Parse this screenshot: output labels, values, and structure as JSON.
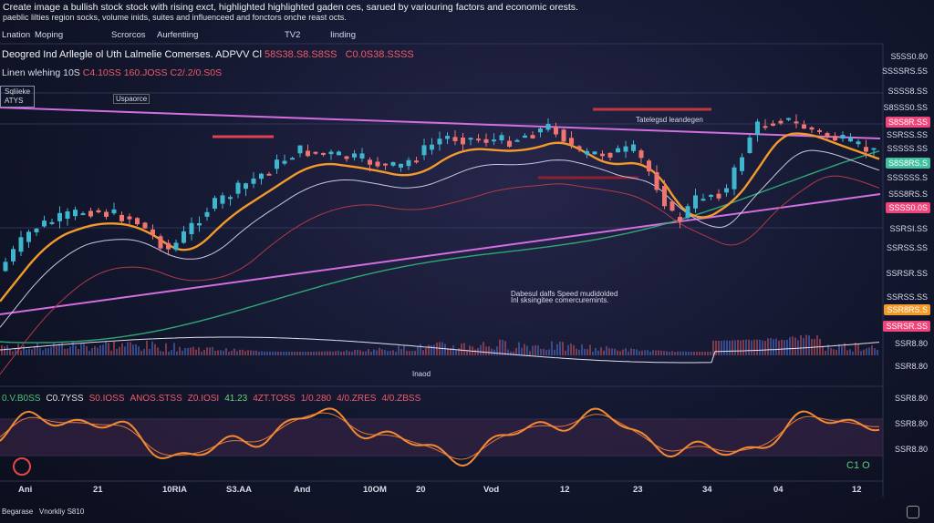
{
  "caption": {
    "line1": "Create image a bullish stock stock with rising exct, highlighted highlighted gaden ces, sarued by variouring factors and economic orests.",
    "line2": "paeblic lilties region socks, volume inids, suites and influenceed and fonctors onche reast octs."
  },
  "toolbar": [
    "Lnation",
    "Moping",
    "Scrorcos",
    "Aurfentiing",
    "TV2",
    "Iinding"
  ],
  "header": {
    "title": "Deogred Ind Arllegle ol Uth Lalmelie Comerses. ADPVV Cl",
    "value1": "58S38.S8.S8SS",
    "value2": "C0.0S38.SSSS",
    "sub": "Linen wlehing 10S",
    "sub1": "C4.10SS",
    "sub2": "160.JOSS",
    "sub3": "C2/.2/0.S0S"
  },
  "legend_box": {
    "line1": "Sqliieke",
    "line2": "ATYS"
  },
  "annotations": [
    "Uspaorce",
    "Tatelegsd leandegen",
    "Dabesul dalfs Speed mudidolded",
    "Inl sksingitee comercuremints.",
    "Inaod"
  ],
  "indicator_row": [
    "0.V.B0SS",
    "C0.7YSS",
    "S0.IOSS",
    "ANOS.STSS",
    "Z0.IOSI",
    "41.23",
    "4ZT.TOSS",
    "1/0.280",
    "4/0.ZRES",
    "4/0.ZBSS"
  ],
  "price_axis": [
    "S5SS0.80",
    "SSSSRS.5S",
    "SSSS8.SS",
    "S8SSS0.SS",
    "S8S8R.SS",
    "SSRSS.SS",
    "SSSSS.SS",
    "S8S8RS.S",
    "SSSSSS.S",
    "S5S8RS.S",
    "SSSS0.0S",
    "SSRSI.SS",
    "SSRSS.SS",
    "SSRSR.SS",
    "SSRSS.SS",
    "SSR8RS.S",
    "SSRSR.SS",
    "SSR8.80",
    "SSR8.80",
    "SSR8.80",
    "SSR8.80",
    "SSR8.80"
  ],
  "time_axis": [
    "Ani",
    "21",
    "10RIA",
    "S3.AA",
    "And",
    "10OM",
    "20",
    "Vod",
    "12",
    "23",
    "34",
    "04",
    "12"
  ],
  "status": {
    "indicator": "C1 O",
    "footer1": "Begarase",
    "footer2": "Vnorkliy S810"
  }
}
